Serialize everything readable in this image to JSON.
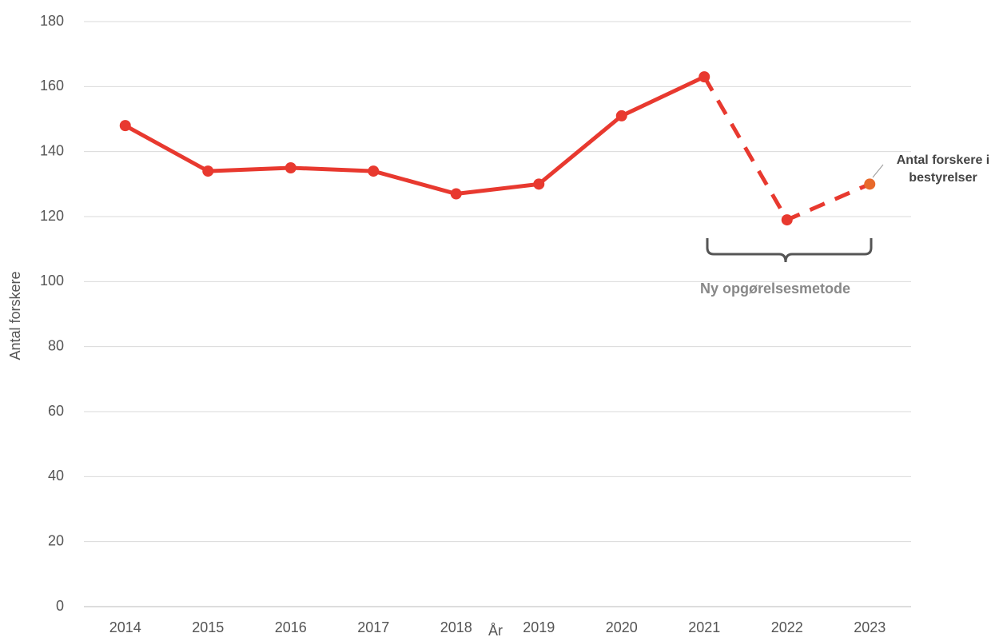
{
  "chart_data": {
    "type": "line",
    "x_label": "År",
    "y_label": "Antal forskere",
    "categories": [
      "2014",
      "2015",
      "2016",
      "2017",
      "2018",
      "2019",
      "2020",
      "2021",
      "2022",
      "2023"
    ],
    "series": [
      {
        "name": "Antal forskere i bestyrelser",
        "color": "#e8392f",
        "values": [
          148,
          134,
          135,
          134,
          127,
          130,
          151,
          163,
          119,
          130
        ]
      }
    ],
    "dashed_from_index": 7,
    "last_marker_color": "#e8692a",
    "annotation": "Ny opgørelsesmetode",
    "ylim": [
      0,
      180
    ],
    "yticks": [
      0,
      20,
      40,
      60,
      80,
      100,
      120,
      140,
      160,
      180
    ],
    "grid": true
  }
}
